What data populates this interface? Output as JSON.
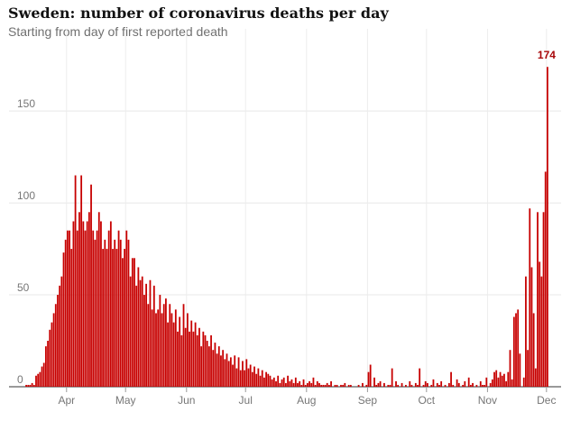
{
  "chart_data": {
    "type": "bar",
    "title": "Sweden: number of coronavirus deaths per day",
    "subtitle": "Starting from day of first reported death",
    "xlabel": "",
    "ylabel": "",
    "ylim": [
      0,
      180
    ],
    "y_ticks": [
      0,
      50,
      100,
      150
    ],
    "x_ticks": [
      "Apr",
      "May",
      "Jun",
      "Jul",
      "Aug",
      "Sep",
      "Oct",
      "Nov",
      "Dec"
    ],
    "bar_color": "#c70000",
    "grid": true,
    "legend": "none",
    "start_date": "2020-03-11",
    "annotation": {
      "label": "174",
      "value": 174
    },
    "values": [
      1,
      1,
      1,
      2,
      1,
      6,
      7,
      8,
      11,
      13,
      22,
      25,
      31,
      35,
      40,
      45,
      50,
      55,
      60,
      73,
      80,
      85,
      85,
      75,
      90,
      115,
      85,
      95,
      115,
      90,
      85,
      90,
      95,
      110,
      85,
      80,
      85,
      95,
      90,
      75,
      80,
      75,
      85,
      90,
      75,
      80,
      75,
      85,
      80,
      70,
      75,
      85,
      80,
      60,
      70,
      70,
      55,
      65,
      58,
      60,
      50,
      56,
      45,
      58,
      42,
      55,
      40,
      42,
      50,
      40,
      45,
      48,
      35,
      45,
      40,
      35,
      42,
      30,
      38,
      28,
      45,
      32,
      40,
      30,
      36,
      30,
      35,
      28,
      32,
      22,
      30,
      28,
      25,
      22,
      28,
      20,
      24,
      18,
      22,
      17,
      20,
      15,
      18,
      14,
      16,
      12,
      17,
      10,
      16,
      9,
      14,
      9,
      15,
      10,
      12,
      8,
      11,
      7,
      10,
      6,
      9,
      5,
      8,
      7,
      6,
      4,
      5,
      3,
      6,
      2,
      4,
      5,
      2,
      6,
      3,
      4,
      2,
      5,
      2,
      3,
      1,
      4,
      1,
      2,
      3,
      2,
      5,
      1,
      3,
      2,
      1,
      1,
      1,
      2,
      1,
      3,
      0,
      1,
      1,
      0,
      1,
      1,
      2,
      0,
      1,
      1,
      0,
      0,
      0,
      1,
      0,
      2,
      0,
      1,
      8,
      12,
      0,
      5,
      1,
      2,
      3,
      0,
      2,
      0,
      1,
      1,
      10,
      0,
      3,
      1,
      0,
      2,
      0,
      1,
      0,
      3,
      1,
      0,
      2,
      1,
      10,
      0,
      1,
      3,
      2,
      0,
      1,
      4,
      0,
      2,
      1,
      3,
      0,
      1,
      0,
      2,
      8,
      1,
      0,
      4,
      2,
      0,
      1,
      3,
      0,
      5,
      1,
      2,
      0,
      1,
      0,
      3,
      1,
      1,
      5,
      0,
      2,
      4,
      8,
      9,
      5,
      8,
      6,
      7,
      3,
      8,
      20,
      4,
      38,
      40,
      42,
      18,
      0,
      5,
      60,
      20,
      97,
      65,
      40,
      10,
      95,
      68,
      60,
      95,
      117,
      174
    ]
  }
}
